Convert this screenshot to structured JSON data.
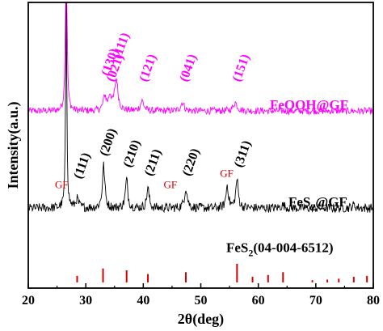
{
  "chart_data": {
    "type": "line",
    "xlabel": "2θ(deg)",
    "ylabel": "Intensity(a.u.)",
    "xlim": [
      20,
      80
    ],
    "xticks": [
      "20",
      "30",
      "40",
      "50",
      "60",
      "70",
      "80"
    ],
    "colors": {
      "feooh": "#ff00ff",
      "fes2": "#000000",
      "reference": "#d40000",
      "gf": "#d40000"
    },
    "series": [
      {
        "name": "FeOOH@GF",
        "baseline": 0.62,
        "peaks": [
          {
            "x": 26.6,
            "height": 0.9,
            "width": 0.12
          },
          {
            "x": 33.3,
            "height": 0.05,
            "width": 0.3
          },
          {
            "x": 34.2,
            "height": 0.05,
            "width": 0.3
          },
          {
            "x": 35.3,
            "height": 0.11,
            "width": 0.35
          },
          {
            "x": 39.8,
            "height": 0.035,
            "width": 0.35
          },
          {
            "x": 46.8,
            "height": 0.03,
            "width": 0.35
          },
          {
            "x": 56.0,
            "height": 0.03,
            "width": 0.4
          }
        ]
      },
      {
        "name": "FeS2@GF",
        "baseline": 0.28,
        "peaks": [
          {
            "x": 26.6,
            "height": 0.75,
            "width": 0.12
          },
          {
            "x": 28.5,
            "height": 0.03,
            "width": 0.3
          },
          {
            "x": 33.1,
            "height": 0.15,
            "width": 0.25
          },
          {
            "x": 37.1,
            "height": 0.1,
            "width": 0.25
          },
          {
            "x": 40.8,
            "height": 0.07,
            "width": 0.25
          },
          {
            "x": 47.4,
            "height": 0.07,
            "width": 0.3
          },
          {
            "x": 54.6,
            "height": 0.08,
            "width": 0.25
          },
          {
            "x": 56.3,
            "height": 0.1,
            "width": 0.25
          },
          {
            "x": 64.3,
            "height": 0.01,
            "width": 0.4
          },
          {
            "x": 76.6,
            "height": 0.01,
            "width": 0.4
          }
        ]
      }
    ],
    "reference": {
      "name": "FeS2(04-004-6512)",
      "sticks": [
        {
          "x": 28.5,
          "value": 0.35
        },
        {
          "x": 33.0,
          "value": 0.75
        },
        {
          "x": 37.1,
          "value": 0.65
        },
        {
          "x": 40.8,
          "value": 0.45
        },
        {
          "x": 47.4,
          "value": 0.55
        },
        {
          "x": 56.3,
          "value": 1.0
        },
        {
          "x": 59.0,
          "value": 0.3
        },
        {
          "x": 61.7,
          "value": 0.4
        },
        {
          "x": 64.3,
          "value": 0.55
        },
        {
          "x": 69.4,
          "value": 0.12
        },
        {
          "x": 72.0,
          "value": 0.15
        },
        {
          "x": 74.0,
          "value": 0.2
        },
        {
          "x": 76.6,
          "value": 0.3
        },
        {
          "x": 78.9,
          "value": 0.35
        }
      ]
    },
    "annotations": {
      "feooh_peaks": [
        {
          "text": "(130)",
          "x": 33.3,
          "y": 0.74
        },
        {
          "text": "(021)",
          "x": 34.2,
          "y": 0.72
        },
        {
          "text": "(111)",
          "x": 35.3,
          "y": 0.8
        },
        {
          "text": "(121)",
          "x": 39.9,
          "y": 0.72
        },
        {
          "text": "(041)",
          "x": 46.9,
          "y": 0.72
        },
        {
          "text": "(151)",
          "x": 56.1,
          "y": 0.72
        }
      ],
      "fes2_peaks": [
        {
          "text": "(111)",
          "x": 28.5,
          "y": 0.38
        },
        {
          "text": "(200)",
          "x": 33.0,
          "y": 0.46
        },
        {
          "text": "(210)",
          "x": 37.1,
          "y": 0.42
        },
        {
          "text": "(211)",
          "x": 40.8,
          "y": 0.39
        },
        {
          "text": "(220)",
          "x": 47.4,
          "y": 0.39
        },
        {
          "text": "(311)",
          "x": 56.4,
          "y": 0.42
        }
      ],
      "gf_marks": [
        {
          "text": "GF",
          "x": 25.8,
          "y": 0.35
        },
        {
          "text": "GF",
          "x": 44.7,
          "y": 0.35
        },
        {
          "text": "GF",
          "x": 54.5,
          "y": 0.39
        }
      ]
    },
    "series_labels": {
      "feooh": "FeOOH@GF",
      "fes2_main": "FeS",
      "fes2_sub": "2",
      "fes2_tail": "@GF",
      "ref_main": "FeS",
      "ref_sub": "2",
      "ref_tail": "(04-004-6512)"
    }
  }
}
